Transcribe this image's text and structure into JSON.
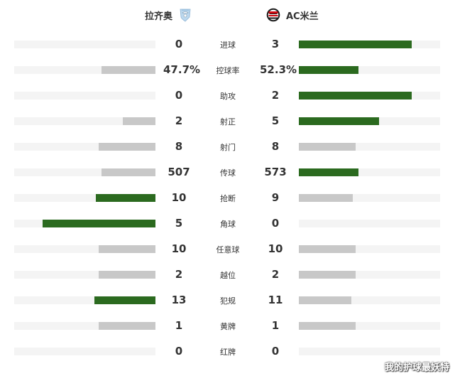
{
  "header": {
    "home_team": "拉齐奥",
    "away_team": "AC米兰",
    "home_logo_icon": "lazio-eagle-crest-icon",
    "away_logo_icon": "ac-milan-crest-icon"
  },
  "colors": {
    "winner_bar": "#2b6a1f",
    "other_bar": "#c8c8c8",
    "track": "#f4f4f4"
  },
  "stats": [
    {
      "label": "进球",
      "home": "0",
      "away": "3",
      "home_fraction": 0.0,
      "away_fraction": 0.8,
      "leader": "away"
    },
    {
      "label": "控球率",
      "home": "47.7%",
      "away": "52.3%",
      "home_fraction": 0.38,
      "away_fraction": 0.42,
      "leader": "away"
    },
    {
      "label": "助攻",
      "home": "0",
      "away": "2",
      "home_fraction": 0.0,
      "away_fraction": 0.8,
      "leader": "away"
    },
    {
      "label": "射正",
      "home": "2",
      "away": "5",
      "home_fraction": 0.23,
      "away_fraction": 0.57,
      "leader": "away"
    },
    {
      "label": "射门",
      "home": "8",
      "away": "8",
      "home_fraction": 0.4,
      "away_fraction": 0.4,
      "leader": "none"
    },
    {
      "label": "传球",
      "home": "507",
      "away": "573",
      "home_fraction": 0.38,
      "away_fraction": 0.42,
      "leader": "away"
    },
    {
      "label": "抢断",
      "home": "10",
      "away": "9",
      "home_fraction": 0.42,
      "away_fraction": 0.38,
      "leader": "home"
    },
    {
      "label": "角球",
      "home": "5",
      "away": "0",
      "home_fraction": 0.8,
      "away_fraction": 0.0,
      "leader": "home"
    },
    {
      "label": "任意球",
      "home": "10",
      "away": "10",
      "home_fraction": 0.4,
      "away_fraction": 0.4,
      "leader": "none"
    },
    {
      "label": "越位",
      "home": "2",
      "away": "2",
      "home_fraction": 0.4,
      "away_fraction": 0.4,
      "leader": "none"
    },
    {
      "label": "犯规",
      "home": "13",
      "away": "11",
      "home_fraction": 0.43,
      "away_fraction": 0.37,
      "leader": "home"
    },
    {
      "label": "黄牌",
      "home": "1",
      "away": "1",
      "home_fraction": 0.4,
      "away_fraction": 0.4,
      "leader": "none"
    },
    {
      "label": "红牌",
      "home": "0",
      "away": "0",
      "home_fraction": 0.0,
      "away_fraction": 0.0,
      "leader": "none"
    }
  ],
  "watermark": "我的护球最妖特"
}
